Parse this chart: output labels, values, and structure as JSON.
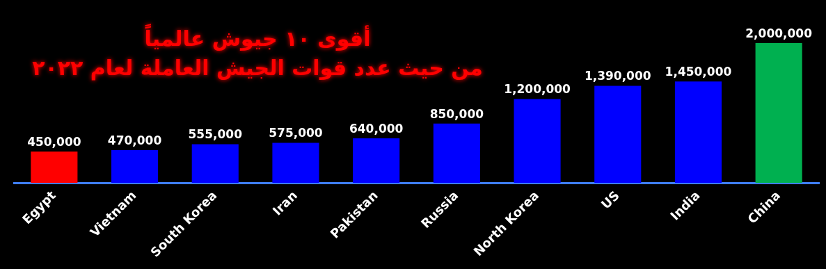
{
  "chart_data": {
    "type": "bar",
    "title": "أقوى ١٠ جيوش عالمياً",
    "subtitle": "من حيث عدد قوات الجيش العاملة لعام ٢٠٢٢",
    "categories": [
      "Egypt",
      "Vietnam",
      "South Korea",
      "Iran",
      "Pakistan",
      "Russia",
      "North Korea",
      "US",
      "India",
      "China"
    ],
    "values": [
      450000,
      470000,
      555000,
      575000,
      640000,
      850000,
      1200000,
      1390000,
      1450000,
      2000000
    ],
    "value_labels": [
      "450,000",
      "470,000",
      "555,000",
      "575,000",
      "640,000",
      "850,000",
      "1,200,000",
      "1,390,000",
      "1,450,000",
      "2,000,000"
    ],
    "colors": [
      "#ff0000",
      "#0000ff",
      "#0000ff",
      "#0000ff",
      "#0000ff",
      "#0000ff",
      "#0000ff",
      "#0000ff",
      "#0000ff",
      "#00b050"
    ],
    "tick_labels": "x"
  }
}
